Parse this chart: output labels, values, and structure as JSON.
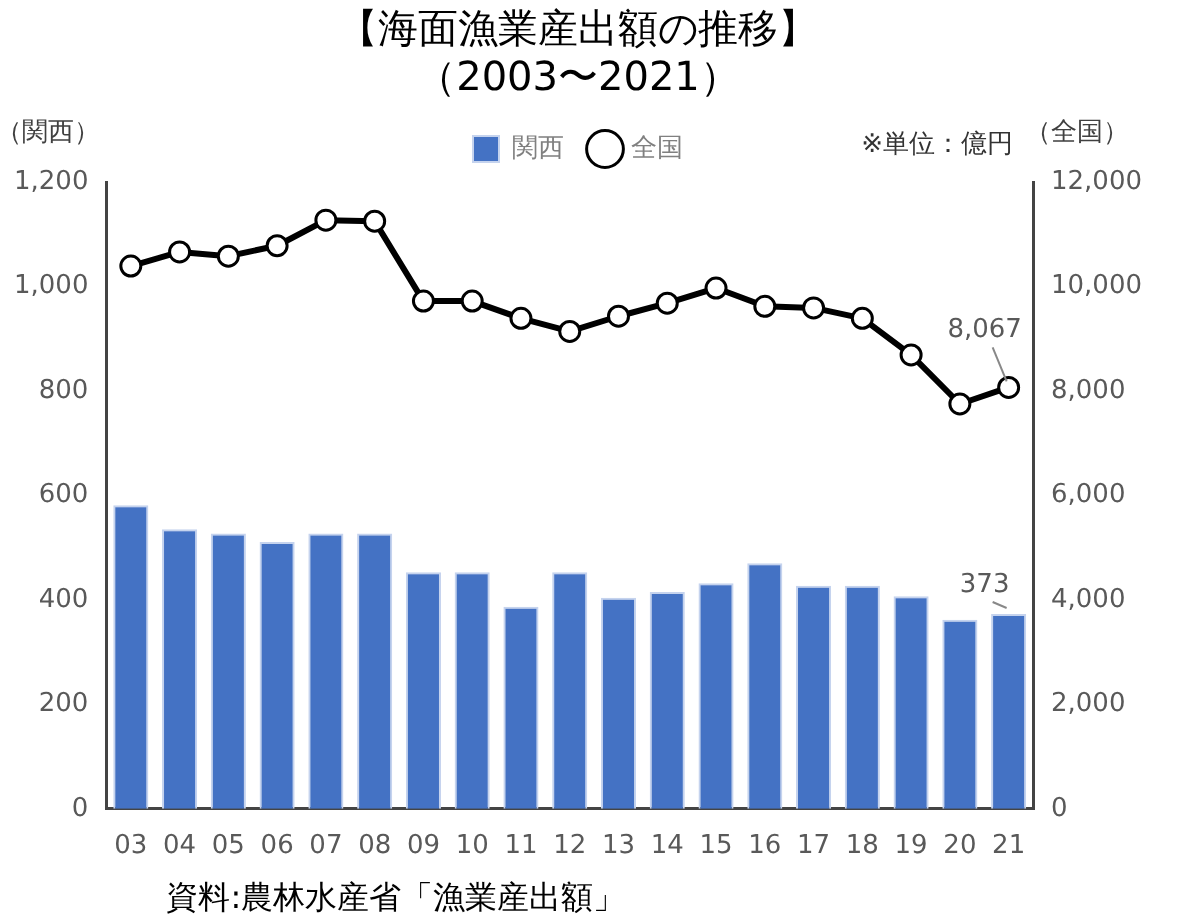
{
  "chart_data": {
    "type": "bar",
    "title": "【海面漁業産出額の推移】",
    "subtitle": "（2003〜2021）",
    "ylabel": "（関西）",
    "y2label": "（全国）",
    "annotations": [
      "※単位：億円",
      "資料:農林水産省「漁業産出額」"
    ],
    "categories": [
      "03",
      "04",
      "05",
      "06",
      "07",
      "08",
      "09",
      "10",
      "11",
      "12",
      "13",
      "14",
      "15",
      "16",
      "17",
      "18",
      "19",
      "20",
      "21"
    ],
    "series": [
      {
        "name": "関西",
        "color": "#4472c4",
        "values": [
          581,
          535,
          527,
          511,
          527,
          527,
          453,
          453,
          387,
          453,
          404,
          415,
          432,
          470,
          427,
          427,
          407,
          362,
          373
        ],
        "value_labels": [
          null,
          null,
          null,
          null,
          null,
          null,
          null,
          null,
          null,
          null,
          null,
          null,
          null,
          null,
          null,
          null,
          null,
          null,
          "373"
        ]
      },
      {
        "name": "全国",
        "type": "line",
        "axis": "y2",
        "color": "#000000",
        "marker": "circle",
        "values": [
          10390,
          10660,
          10580,
          10780,
          11270,
          11250,
          9720,
          9720,
          9390,
          9140,
          9430,
          9680,
          9970,
          9620,
          9590,
          9390,
          8690,
          7750,
          8067
        ],
        "value_labels": [
          null,
          null,
          null,
          null,
          null,
          null,
          null,
          null,
          null,
          null,
          null,
          null,
          null,
          null,
          null,
          null,
          null,
          null,
          "8,067"
        ]
      }
    ],
    "ylim": [
      0,
      1200
    ],
    "yticks": [
      0,
      200,
      400,
      600,
      800,
      {
        "value": 1000,
        "label": "1,000"
      },
      {
        "value": 1200,
        "label": "1,200"
      }
    ],
    "y2lim": [
      0,
      12000
    ],
    "y2ticks": [
      0,
      {
        "value": 2000,
        "label": "2,000"
      },
      {
        "value": 4000,
        "label": "4,000"
      },
      {
        "value": 6000,
        "label": "6,000"
      },
      {
        "value": 8000,
        "label": "8,000"
      },
      {
        "value": 10000,
        "label": "10,000"
      },
      {
        "value": 12000,
        "label": "12,000"
      }
    ],
    "grid": false,
    "legend": "top"
  }
}
